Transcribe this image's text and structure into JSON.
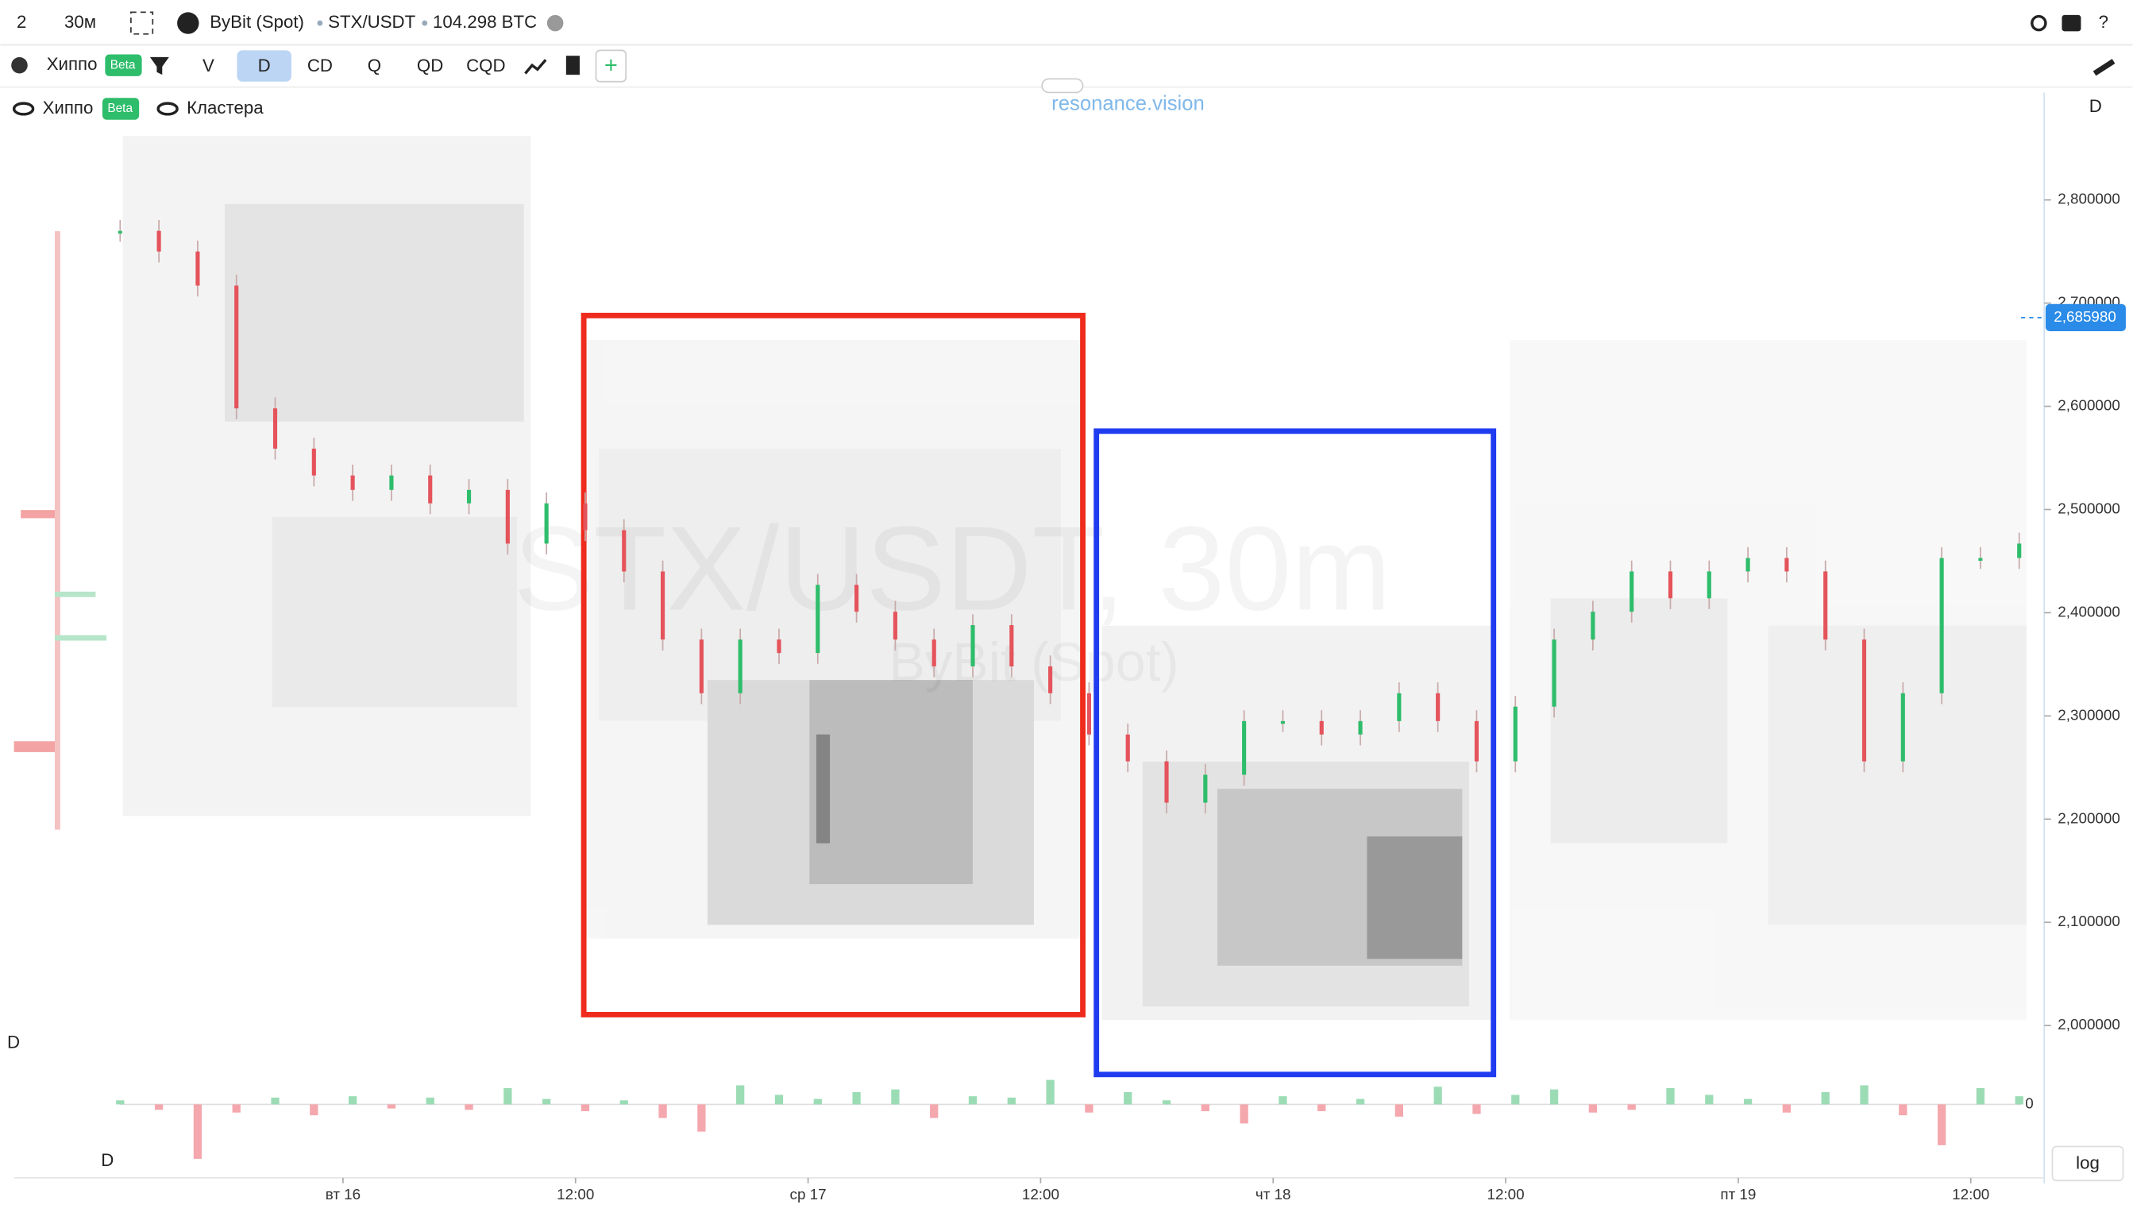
{
  "toolbar": {
    "interval_count": "2",
    "timeframe": "30м",
    "exchange": "ByBit (Spot)",
    "symbol": "STX/USDT",
    "volume": "104.298 BTC",
    "indicator": "Хиппо",
    "badge": "Beta",
    "modes": [
      "V",
      "D",
      "CD",
      "Q",
      "QD",
      "CQD"
    ]
  },
  "legend": {
    "items": [
      {
        "name": "Хиппо",
        "badge": "Beta"
      },
      {
        "name": "Кластера"
      }
    ]
  },
  "brand": "resonance.vision",
  "chart_data": {
    "type": "candlestick",
    "watermark": "STX/USDT, 30m",
    "watermark_sub": "ByBit (Spot)",
    "pane_label": "D",
    "x": [
      -11.5,
      -9.5,
      -7.5,
      -5.5,
      -3.5,
      -1.5,
      0.5,
      2.5,
      4.5,
      6.5,
      8.5,
      10.5,
      12.5,
      14.5,
      16.5,
      18.5,
      20.5,
      22.5,
      24.5,
      26.5,
      28.5,
      30.5,
      32.5,
      34.5,
      36.5,
      38.5,
      40.5,
      42.5,
      44.5,
      46.5,
      48.5,
      50.5,
      52.5,
      54.5,
      56.5,
      58.5,
      60.5,
      62.5,
      64.5,
      66.5,
      68.5,
      70.5,
      72.5,
      74.5,
      76.5,
      78.5,
      80.5,
      82.5,
      84.5,
      86.5
    ],
    "values": [
      2.77,
      2.75,
      2.717,
      2.598,
      2.559,
      2.533,
      2.519,
      2.533,
      2.506,
      2.519,
      2.467,
      2.506,
      2.48,
      2.44,
      2.374,
      2.322,
      2.374,
      2.361,
      2.427,
      2.401,
      2.374,
      2.348,
      2.388,
      2.348,
      2.322,
      2.282,
      2.256,
      2.216,
      2.243,
      2.295,
      2.295,
      2.282,
      2.295,
      2.322,
      2.295,
      2.256,
      2.309,
      2.374,
      2.401,
      2.44,
      2.414,
      2.44,
      2.453,
      2.44,
      2.374,
      2.256,
      2.322,
      2.453,
      2.453,
      2.467
    ],
    "xlim": [
      -17.68,
      87.79
    ],
    "xticks": [
      {
        "value": 0,
        "label": "вт 16"
      },
      {
        "value": 12,
        "label": "12:00"
      },
      {
        "value": 24,
        "label": "ср 17"
      },
      {
        "value": 36,
        "label": "12:00"
      },
      {
        "value": 48,
        "label": "чт 18"
      },
      {
        "value": 60,
        "label": "12:00"
      },
      {
        "value": 72,
        "label": "пт 19"
      },
      {
        "value": 84,
        "label": "12:00"
      }
    ],
    "ylim": [
      1.9526,
      2.8685
    ],
    "yticks": [
      {
        "value": 2.0,
        "label": "2,000000"
      },
      {
        "value": 2.1,
        "label": "2,100000"
      },
      {
        "value": 2.2,
        "label": "2,200000"
      },
      {
        "value": 2.3,
        "label": "2,300000"
      },
      {
        "value": 2.4,
        "label": "2,400000"
      },
      {
        "value": 2.5,
        "label": "2,500000"
      },
      {
        "value": 2.6,
        "label": "2,600000"
      },
      {
        "value": 2.7,
        "label": "2,700000"
      },
      {
        "value": 2.8,
        "label": "2,800000"
      }
    ],
    "last_price": {
      "value": 2.68598,
      "label": "2,685980"
    },
    "scale_mode": "log",
    "delta": {
      "label": "D",
      "ylim": [
        -48,
        42
      ],
      "yticks": [
        0
      ],
      "values": [
        3,
        -4,
        -40,
        -6,
        5,
        -8,
        6,
        -3,
        5,
        -4,
        12,
        4,
        -5,
        3,
        -10,
        -20,
        14,
        7,
        4,
        9,
        11,
        -10,
        6,
        5,
        18,
        -6,
        9,
        3,
        -5,
        -14,
        6,
        -5,
        4,
        -9,
        13,
        -7,
        7,
        11,
        -6,
        -4,
        12,
        7,
        4,
        -6,
        9,
        14,
        -8,
        -30,
        12,
        6
      ]
    }
  }
}
